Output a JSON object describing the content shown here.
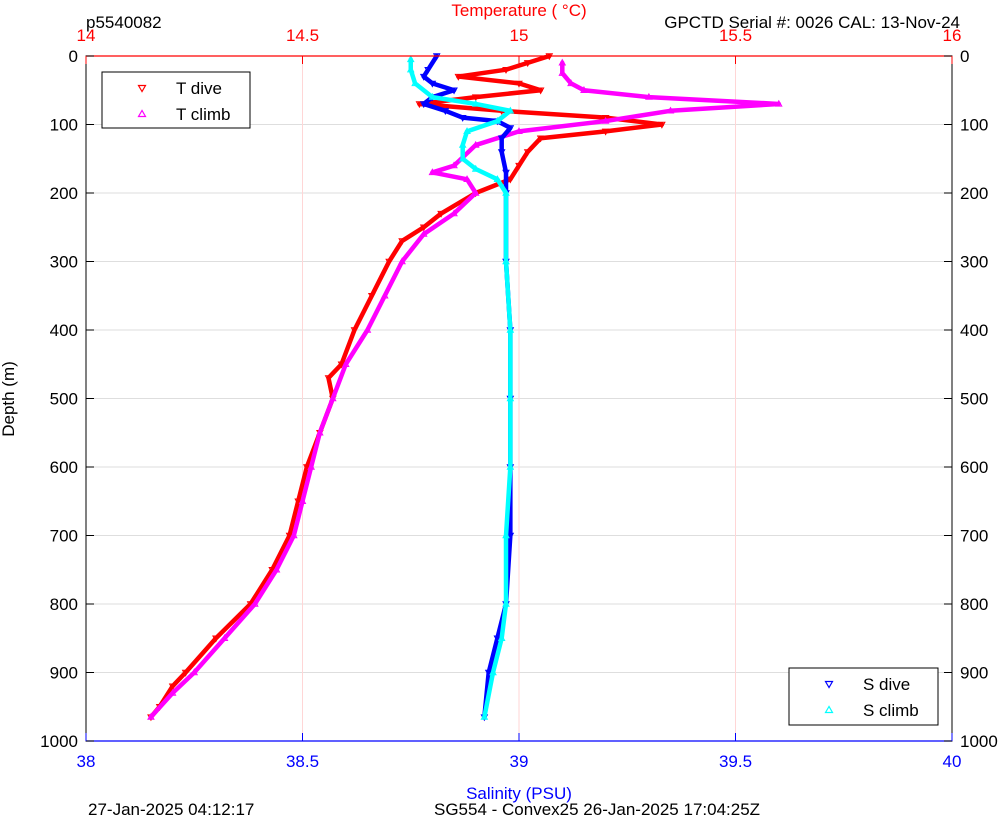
{
  "header": {
    "left": "p5540082",
    "right": "GPCTD Serial #: 0026 CAL: 13-Nov-24"
  },
  "footer": {
    "left": "27-Jan-2025 04:12:17",
    "center": "SG554 - Convex25 26-Jan-2025 17:04:25Z"
  },
  "colors": {
    "t_dive": "#ff0000",
    "t_climb": "#ff00ff",
    "s_dive": "#0000ff",
    "s_climb": "#00ffff",
    "temp_axis": "#ff0000",
    "sal_axis": "#0000ff",
    "depth_axis": "#000000",
    "grid": "#dedede"
  },
  "chart_data": {
    "type": "scatter",
    "grid": true,
    "axes": {
      "depth": {
        "label": "Depth (m)",
        "range": [
          0,
          1000
        ],
        "inverted": true,
        "ticks": [
          "0",
          "100",
          "200",
          "300",
          "400",
          "500",
          "600",
          "700",
          "800",
          "900",
          "1000"
        ]
      },
      "temperature": {
        "label": "Temperature (    °C)",
        "range": [
          14,
          16
        ],
        "ticks": [
          "14",
          "14.5",
          "15",
          "15.5",
          "16"
        ]
      },
      "salinity": {
        "label": "Salinity (PSU)",
        "range": [
          38,
          40
        ],
        "ticks": [
          "38",
          "38.5",
          "39",
          "39.5",
          "40"
        ]
      }
    },
    "legends": [
      {
        "position": "top-left",
        "entries": [
          "T dive",
          "T climb"
        ]
      },
      {
        "position": "bottom-right",
        "entries": [
          "S dive",
          "S climb"
        ]
      }
    ],
    "series": [
      {
        "name": "T dive",
        "axis": "temperature",
        "marker": "triangle-down",
        "points": [
          [
            15.07,
            0
          ],
          [
            15.02,
            10
          ],
          [
            14.97,
            20
          ],
          [
            14.86,
            30
          ],
          [
            15.0,
            40
          ],
          [
            15.05,
            50
          ],
          [
            14.9,
            60
          ],
          [
            14.77,
            70
          ],
          [
            14.96,
            80
          ],
          [
            15.2,
            90
          ],
          [
            15.33,
            100
          ],
          [
            15.2,
            110
          ],
          [
            15.05,
            120
          ],
          [
            15.02,
            140
          ],
          [
            15.0,
            160
          ],
          [
            14.98,
            180
          ],
          [
            14.9,
            200
          ],
          [
            14.82,
            230
          ],
          [
            14.78,
            250
          ],
          [
            14.73,
            270
          ],
          [
            14.7,
            300
          ],
          [
            14.66,
            350
          ],
          [
            14.62,
            400
          ],
          [
            14.59,
            450
          ],
          [
            14.56,
            470
          ],
          [
            14.57,
            500
          ],
          [
            14.54,
            550
          ],
          [
            14.51,
            600
          ],
          [
            14.49,
            650
          ],
          [
            14.47,
            700
          ],
          [
            14.43,
            750
          ],
          [
            14.38,
            800
          ],
          [
            14.3,
            850
          ],
          [
            14.23,
            900
          ],
          [
            14.2,
            920
          ],
          [
            14.17,
            950
          ],
          [
            14.15,
            965
          ]
        ]
      },
      {
        "name": "T climb",
        "axis": "temperature",
        "marker": "triangle-up",
        "points": [
          [
            14.15,
            965
          ],
          [
            14.2,
            930
          ],
          [
            14.25,
            900
          ],
          [
            14.32,
            850
          ],
          [
            14.39,
            800
          ],
          [
            14.44,
            750
          ],
          [
            14.48,
            700
          ],
          [
            14.5,
            650
          ],
          [
            14.52,
            600
          ],
          [
            14.54,
            550
          ],
          [
            14.57,
            500
          ],
          [
            14.6,
            450
          ],
          [
            14.65,
            400
          ],
          [
            14.69,
            350
          ],
          [
            14.73,
            300
          ],
          [
            14.78,
            260
          ],
          [
            14.85,
            230
          ],
          [
            14.9,
            200
          ],
          [
            14.88,
            180
          ],
          [
            14.8,
            170
          ],
          [
            14.85,
            160
          ],
          [
            14.9,
            130
          ],
          [
            15.0,
            110
          ],
          [
            15.2,
            95
          ],
          [
            15.35,
            80
          ],
          [
            15.6,
            70
          ],
          [
            15.3,
            60
          ],
          [
            15.15,
            50
          ],
          [
            15.12,
            40
          ],
          [
            15.1,
            25
          ],
          [
            15.1,
            10
          ]
        ]
      },
      {
        "name": "S dive",
        "axis": "salinity",
        "marker": "triangle-down",
        "points": [
          [
            38.81,
            0
          ],
          [
            38.79,
            20
          ],
          [
            38.78,
            30
          ],
          [
            38.8,
            40
          ],
          [
            38.85,
            50
          ],
          [
            38.8,
            60
          ],
          [
            38.78,
            70
          ],
          [
            38.83,
            80
          ],
          [
            38.87,
            90
          ],
          [
            38.95,
            95
          ],
          [
            38.98,
            105
          ],
          [
            38.96,
            120
          ],
          [
            38.96,
            140
          ],
          [
            38.97,
            170
          ],
          [
            38.97,
            200
          ],
          [
            38.97,
            300
          ],
          [
            38.98,
            400
          ],
          [
            38.98,
            500
          ],
          [
            38.98,
            600
          ],
          [
            38.98,
            700
          ],
          [
            38.97,
            800
          ],
          [
            38.95,
            850
          ],
          [
            38.93,
            900
          ],
          [
            38.92,
            965
          ]
        ]
      },
      {
        "name": "S climb",
        "axis": "salinity",
        "marker": "triangle-up",
        "points": [
          [
            38.92,
            965
          ],
          [
            38.94,
            900
          ],
          [
            38.96,
            850
          ],
          [
            38.97,
            800
          ],
          [
            38.97,
            700
          ],
          [
            38.98,
            600
          ],
          [
            38.98,
            500
          ],
          [
            38.98,
            400
          ],
          [
            38.97,
            300
          ],
          [
            38.97,
            200
          ],
          [
            38.95,
            180
          ],
          [
            38.9,
            165
          ],
          [
            38.87,
            150
          ],
          [
            38.87,
            130
          ],
          [
            38.88,
            110
          ],
          [
            38.95,
            95
          ],
          [
            38.98,
            80
          ],
          [
            38.9,
            70
          ],
          [
            38.8,
            60
          ],
          [
            38.76,
            40
          ],
          [
            38.75,
            20
          ],
          [
            38.75,
            5
          ]
        ]
      }
    ]
  }
}
